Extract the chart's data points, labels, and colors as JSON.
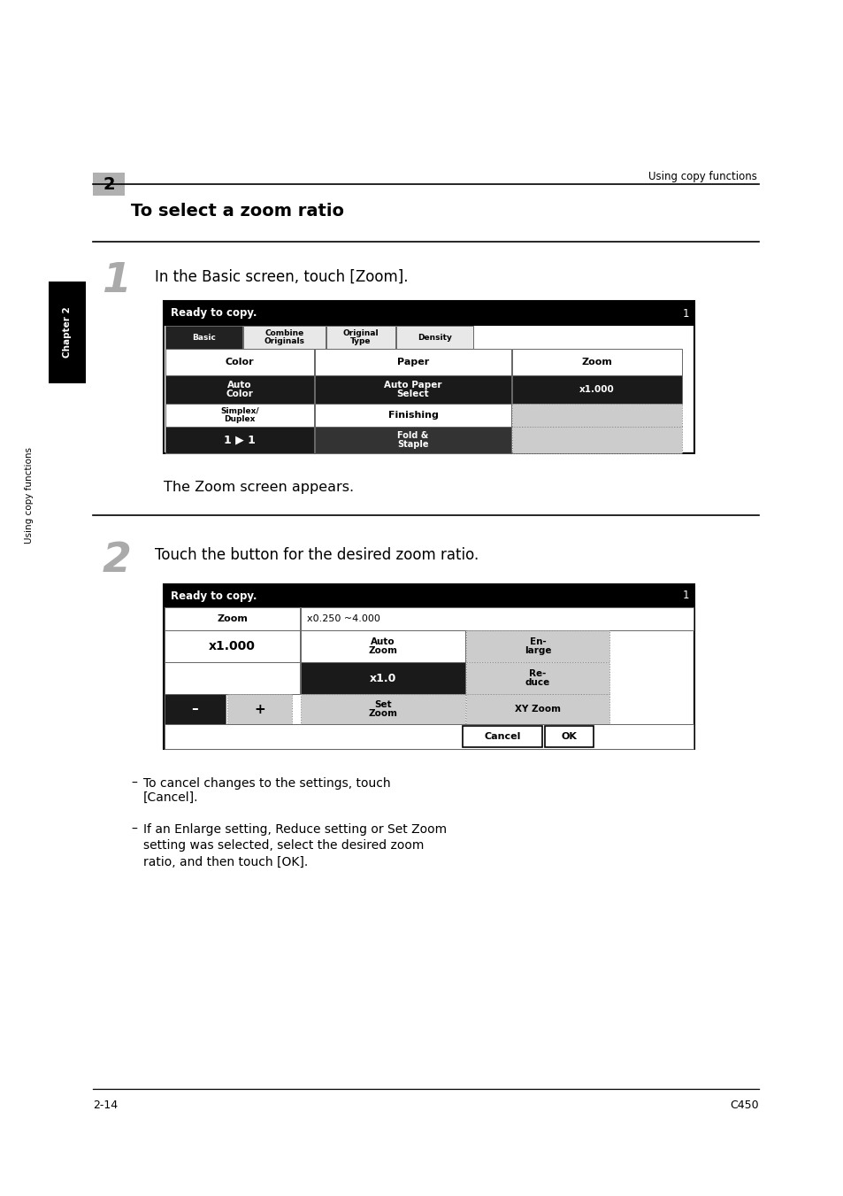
{
  "page_bg": "#ffffff",
  "header_chapter_num": "2",
  "header_right_text": "Using copy functions",
  "title": "To select a zoom ratio",
  "step1_num": "1",
  "step1_text": "In the Basic screen, touch [Zoom].",
  "step1_caption": "The Zoom screen appears.",
  "step2_num": "2",
  "step2_text": "Touch the button for the desired zoom ratio.",
  "bullet1_dash": "–",
  "bullet1_text": "To cancel changes to the settings, touch\n[Cancel].",
  "bullet2_dash": "–",
  "bullet2_line1": "If an Enlarge setting, Reduce setting or Set Zoom",
  "bullet2_line2": "setting was selected, select the desired zoom",
  "bullet2_line3": "ratio, and then touch [OK].",
  "footer_left": "2-14",
  "footer_right": "C450",
  "chapter_tab_text": "Chapter 2",
  "side_label": "Using copy functions",
  "screen1_header": "Ready to copy.",
  "screen1_num": "1",
  "screen2_header": "Ready to copy.",
  "screen2_num": "1",
  "screen2_zoom_range": "x0.250 ~4.000"
}
